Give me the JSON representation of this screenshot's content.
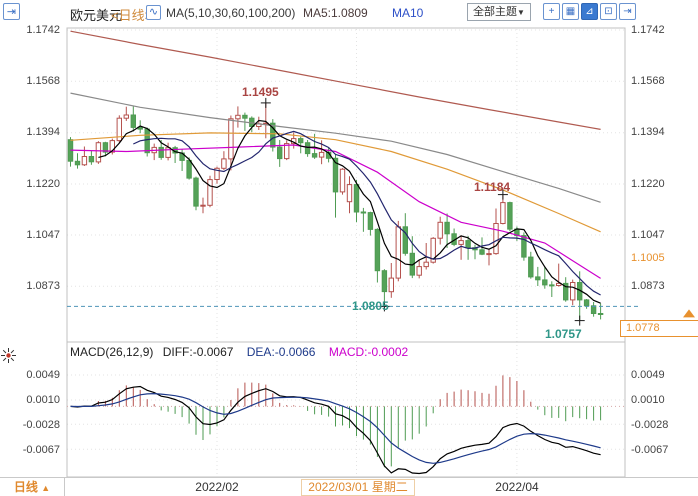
{
  "header": {
    "symbol": "欧元美元",
    "period_tag": "<日线>",
    "ma_settings": "MA(5,10,30,60,100,200)",
    "ma5": "MA5:1.0809",
    "ma10": "MA10",
    "theme_selector": "全部主题",
    "dropdown_arrow": "▼",
    "window_icon_glyph": "⇥",
    "indicator_icon_glyph": "∿",
    "toolbar": [
      {
        "name": "crosshair",
        "glyph": "+",
        "active": false
      },
      {
        "name": "grid-layout",
        "glyph": "▦",
        "active": false
      },
      {
        "name": "axis-scale",
        "glyph": "⊿",
        "active": true
      },
      {
        "name": "fullscreen",
        "glyph": "⊡",
        "active": false
      },
      {
        "name": "collapse-panel",
        "glyph": "⇥",
        "active": false
      }
    ]
  },
  "macd_header": {
    "title": "MACD(26,12,9)",
    "diff": "DIFF:-0.0067",
    "dea": "DEA:-0.0066",
    "macd": "MACD:-0.0002"
  },
  "bottom": {
    "period": "日线",
    "arrow": "▲"
  },
  "colors": {
    "up": "#b5524e",
    "down": "#4e9b52",
    "down_fill": "#55a258",
    "ma5": "#000000",
    "ma10": "#23266e",
    "ma30": "#cc00cc",
    "ma60": "#e09a38",
    "ma100": "#8a8a8a",
    "ma200": "#b05a50",
    "level_line": "#4f94b8",
    "level_text": "#2f9688",
    "annotation_red": "#a94442",
    "marker_orange": "#e8912e",
    "macd_diff": "#000000",
    "macd_dea": "#1e3a8a",
    "grid": "#e3e3e3",
    "pane_border": "#c0c0c0"
  },
  "chart_data": {
    "type": "candlestick",
    "title": "欧元美元 日线 (EUR/USD daily)",
    "y_ticks": [
      1.1742,
      1.1568,
      1.1394,
      1.122,
      1.1047,
      1.0873
    ],
    "y_tick_labels": [
      "1.1742",
      "1.1568",
      "1.1394",
      "1.1220",
      "1.1047",
      "1.0873"
    ],
    "macd_ticks": [
      0.0049,
      0.001,
      -0.0028,
      -0.0067
    ],
    "macd_tick_labels": [
      "0.0049",
      "0.0010",
      "-0.0028",
      "-0.0067"
    ],
    "x_axis": {
      "gridlines": [
        {
          "index": 21,
          "label": "2022/02"
        },
        {
          "index": 41,
          "label": "2022/03/01 星期二"
        },
        {
          "index": 64,
          "label": "2022/04"
        }
      ]
    },
    "annotations": {
      "high": {
        "index": 28,
        "price": 1.1495,
        "label": "1.1495"
      },
      "pullback_high": {
        "index": 62,
        "price": 1.1184,
        "label": "1.1184"
      },
      "support": {
        "index": 45,
        "price": 1.0805,
        "label": "1.0805"
      },
      "low": {
        "index": 73,
        "price": 1.0757,
        "label": "1.0757"
      },
      "right_marker": {
        "price": 1.1005,
        "label": "1.1005"
      },
      "last_price": {
        "price": 1.0778,
        "label": "1.0778",
        "direction": "up"
      }
    },
    "ma_overlays": {
      "ma30": {
        "color_key": "ma30",
        "points": [
          [
            0,
            1.1335
          ],
          [
            8,
            1.133
          ],
          [
            16,
            1.1338
          ],
          [
            24,
            1.1345
          ],
          [
            32,
            1.1352
          ],
          [
            38,
            1.133
          ],
          [
            44,
            1.126
          ],
          [
            50,
            1.116
          ],
          [
            56,
            1.109
          ],
          [
            62,
            1.106
          ],
          [
            68,
            1.102
          ],
          [
            72,
            1.096
          ],
          [
            76,
            1.09
          ]
        ]
      },
      "ma60": {
        "color_key": "ma60",
        "points": [
          [
            0,
            1.1368
          ],
          [
            10,
            1.1385
          ],
          [
            20,
            1.1393
          ],
          [
            30,
            1.139
          ],
          [
            38,
            1.137
          ],
          [
            46,
            1.133
          ],
          [
            54,
            1.127
          ],
          [
            62,
            1.12
          ],
          [
            70,
            1.112
          ],
          [
            76,
            1.1058
          ]
        ]
      },
      "ma100": {
        "color_key": "ma100",
        "points": [
          [
            0,
            1.1528
          ],
          [
            10,
            1.148
          ],
          [
            20,
            1.1445
          ],
          [
            30,
            1.1415
          ],
          [
            38,
            1.1392
          ],
          [
            46,
            1.1365
          ],
          [
            54,
            1.132
          ],
          [
            62,
            1.1262
          ],
          [
            70,
            1.1205
          ],
          [
            76,
            1.1158
          ]
        ]
      },
      "ma200": {
        "color_key": "ma200",
        "points": [
          [
            0,
            1.1738
          ],
          [
            10,
            1.1693
          ],
          [
            20,
            1.165
          ],
          [
            30,
            1.1605
          ],
          [
            40,
            1.156
          ],
          [
            50,
            1.1515
          ],
          [
            60,
            1.1472
          ],
          [
            70,
            1.143
          ],
          [
            76,
            1.1405
          ]
        ]
      }
    },
    "macd_params": [
      26,
      12,
      9
    ],
    "candles": [
      [
        "01-03",
        1.137,
        1.1379,
        1.1279,
        1.1297
      ],
      [
        "01-04",
        1.1297,
        1.1324,
        1.1272,
        1.1285
      ],
      [
        "01-05",
        1.1285,
        1.1347,
        1.1281,
        1.1313
      ],
      [
        "01-06",
        1.1313,
        1.1332,
        1.1285,
        1.1295
      ],
      [
        "01-07",
        1.1295,
        1.1365,
        1.1288,
        1.136
      ],
      [
        "01-10",
        1.136,
        1.1363,
        1.1314,
        1.1328
      ],
      [
        "01-11",
        1.1328,
        1.1374,
        1.132,
        1.1367
      ],
      [
        "01-12",
        1.1367,
        1.1453,
        1.136,
        1.1443
      ],
      [
        "01-13",
        1.1443,
        1.1482,
        1.1434,
        1.1454
      ],
      [
        "01-14",
        1.1454,
        1.1483,
        1.1398,
        1.1412
      ],
      [
        "01-17",
        1.1412,
        1.1436,
        1.1392,
        1.1406
      ],
      [
        "01-18",
        1.1406,
        1.1411,
        1.1313,
        1.1326
      ],
      [
        "01-19",
        1.1326,
        1.1357,
        1.1301,
        1.1344
      ],
      [
        "01-20",
        1.1344,
        1.1369,
        1.1302,
        1.131
      ],
      [
        "01-21",
        1.131,
        1.136,
        1.13,
        1.1343
      ],
      [
        "01-24",
        1.1343,
        1.1349,
        1.1291,
        1.1325
      ],
      [
        "01-25",
        1.1325,
        1.1337,
        1.1264,
        1.13
      ],
      [
        "01-26",
        1.13,
        1.131,
        1.1235,
        1.124
      ],
      [
        "01-27",
        1.124,
        1.1245,
        1.1131,
        1.1145
      ],
      [
        "01-28",
        1.1145,
        1.1174,
        1.1121,
        1.1148
      ],
      [
        "01-31",
        1.1148,
        1.1248,
        1.1141,
        1.1235
      ],
      [
        "02-01",
        1.1235,
        1.1279,
        1.1221,
        1.1273
      ],
      [
        "02-02",
        1.1273,
        1.1331,
        1.1267,
        1.1305
      ],
      [
        "02-03",
        1.1305,
        1.1452,
        1.1266,
        1.1441
      ],
      [
        "02-04",
        1.1441,
        1.1483,
        1.1411,
        1.1453
      ],
      [
        "02-07",
        1.1453,
        1.1462,
        1.14,
        1.1443
      ],
      [
        "02-08",
        1.1443,
        1.1449,
        1.1396,
        1.1415
      ],
      [
        "02-09",
        1.1415,
        1.1448,
        1.1403,
        1.1424
      ],
      [
        "02-10",
        1.1424,
        1.1495,
        1.1375,
        1.1426
      ],
      [
        "02-11",
        1.1426,
        1.144,
        1.133,
        1.1345
      ],
      [
        "02-14",
        1.1345,
        1.1369,
        1.1278,
        1.1306
      ],
      [
        "02-15",
        1.1306,
        1.1368,
        1.1301,
        1.1357
      ],
      [
        "02-16",
        1.1357,
        1.1395,
        1.134,
        1.1374
      ],
      [
        "02-17",
        1.1374,
        1.138,
        1.1324,
        1.136
      ],
      [
        "02-18",
        1.136,
        1.1369,
        1.1312,
        1.1323
      ],
      [
        "02-21",
        1.1323,
        1.139,
        1.1305,
        1.1311
      ],
      [
        "02-22",
        1.1311,
        1.1368,
        1.1287,
        1.1327
      ],
      [
        "02-23",
        1.1327,
        1.1342,
        1.1293,
        1.1307
      ],
      [
        "02-24",
        1.1307,
        1.1319,
        1.1106,
        1.1193
      ],
      [
        "02-25",
        1.1193,
        1.1274,
        1.1184,
        1.127
      ],
      [
        "02-28",
        1.116,
        1.1246,
        1.1121,
        1.1218
      ],
      [
        "03-01",
        1.1218,
        1.1234,
        1.109,
        1.1125
      ],
      [
        "03-02",
        1.1125,
        1.1139,
        1.1058,
        1.1123
      ],
      [
        "03-03",
        1.1123,
        1.1126,
        1.1045,
        1.1066
      ],
      [
        "03-04",
        1.1066,
        1.107,
        1.0886,
        1.0926
      ],
      [
        "03-07",
        1.0926,
        1.0931,
        1.0805,
        1.0855
      ],
      [
        "03-08",
        1.0855,
        1.0952,
        1.0834,
        1.0901
      ],
      [
        "03-09",
        1.0901,
        1.1095,
        1.089,
        1.1075
      ],
      [
        "03-10",
        1.1075,
        1.1121,
        1.0977,
        1.0985
      ],
      [
        "03-11",
        1.0985,
        1.1043,
        1.0901,
        1.0911
      ],
      [
        "03-14",
        1.0911,
        1.0964,
        1.09,
        1.094
      ],
      [
        "03-15",
        1.094,
        1.102,
        1.093,
        1.0955
      ],
      [
        "03-16",
        1.0955,
        1.104,
        1.095,
        1.1036
      ],
      [
        "03-17",
        1.1036,
        1.1109,
        1.1015,
        1.109
      ],
      [
        "03-18",
        1.109,
        1.112,
        1.1003,
        1.1051
      ],
      [
        "03-21",
        1.1051,
        1.1069,
        1.1009,
        1.1015
      ],
      [
        "03-22",
        1.1015,
        1.1046,
        1.0963,
        1.1028
      ],
      [
        "03-23",
        1.1028,
        1.1044,
        1.0963,
        1.1004
      ],
      [
        "03-24",
        1.1004,
        1.1014,
        1.0965,
        1.0997
      ],
      [
        "03-25",
        1.0997,
        1.1039,
        1.0979,
        1.0982
      ],
      [
        "03-28",
        1.0982,
        1.1,
        1.0944,
        1.0984
      ],
      [
        "03-29",
        1.0984,
        1.1137,
        1.098,
        1.1086
      ],
      [
        "03-30",
        1.1086,
        1.1184,
        1.1083,
        1.1157
      ],
      [
        "03-31",
        1.1157,
        1.116,
        1.106,
        1.1067
      ],
      [
        "04-01",
        1.1067,
        1.1076,
        1.1027,
        1.1045
      ],
      [
        "04-04",
        1.1045,
        1.1056,
        1.096,
        1.0972
      ],
      [
        "04-05",
        1.0972,
        1.099,
        1.0899,
        1.0905
      ],
      [
        "04-06",
        1.0905,
        1.0939,
        1.0874,
        1.0895
      ],
      [
        "04-07",
        1.0895,
        1.0938,
        1.0865,
        1.0878
      ],
      [
        "04-08",
        1.0878,
        1.089,
        1.0837,
        1.0876
      ],
      [
        "04-11",
        1.0876,
        1.095,
        1.0872,
        1.0883
      ],
      [
        "04-12",
        1.0883,
        1.0904,
        1.0821,
        1.0827
      ],
      [
        "04-13",
        1.0827,
        1.0896,
        1.0809,
        1.0886
      ],
      [
        "04-14",
        1.0886,
        1.0924,
        1.0757,
        1.0827
      ],
      [
        "04-15",
        1.0827,
        1.083,
        1.0797,
        1.0807
      ],
      [
        "04-18",
        1.0807,
        1.082,
        1.077,
        1.0781
      ],
      [
        "04-19",
        1.0781,
        1.0815,
        1.0761,
        1.0778
      ]
    ]
  }
}
